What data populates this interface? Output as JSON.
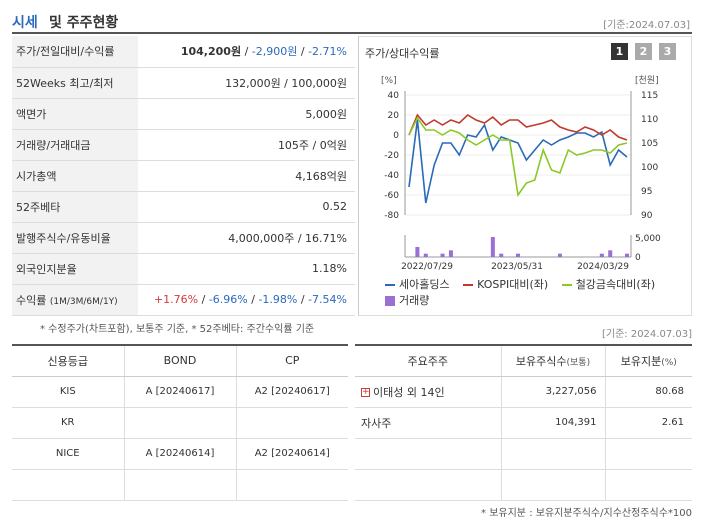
{
  "header": {
    "title_a": "시세",
    "title_b": "및 주주현황",
    "date": "[기준:2024.07.03]"
  },
  "quote": {
    "price_label": "주가/전일대비/수익률",
    "price": "104,200원",
    "change": "-2,900원",
    "change_rate": "-2.71%",
    "wk52_label": "52Weeks 최고/최저",
    "wk52_value": "132,000원 / 100,000원",
    "face_label": "액면가",
    "face_value": "5,000원",
    "volume_label": "거래량/거래대금",
    "volume_value": "105주 / 0억원",
    "mcap_label": "시가총액",
    "mcap_value": "4,168억원",
    "beta_label": "52주베타",
    "beta_value": "0.52",
    "shares_label": "발행주식수/유동비율",
    "shares_value": "4,000,000주 / 16.71%",
    "foreign_label": "외국인지분율",
    "foreign_value": "1.18%",
    "ret_label": "수익률",
    "ret_sub": "(1M/3M/6M/1Y)",
    "ret_1m": "+1.76%",
    "ret_3m": "-6.96%",
    "ret_6m": "-1.98%",
    "ret_1y": "-7.54%",
    "note": "* 수정주가(차트포함), 보통주 기준, * 52주베타: 주간수익률 기준"
  },
  "chart_title": "주가/상대수익률",
  "chart_pages": [
    "1",
    "2",
    "3"
  ],
  "chart_data": {
    "type": "line",
    "left_axis": {
      "ticks": [
        40,
        20,
        0,
        -20,
        -40,
        -60,
        -80
      ],
      "range": [
        -80,
        40
      ],
      "unit": "[%]"
    },
    "right_axis": {
      "ticks": [
        115,
        110,
        105,
        100,
        95,
        90
      ],
      "range": [
        90,
        115
      ],
      "unit": "[천원]"
    },
    "x_labels": [
      "2022/07/29",
      "2023/05/31",
      "2024/03/29"
    ],
    "series": [
      {
        "name": "세아홀딩스",
        "color": "#2a6ab8",
        "axis": "left",
        "values": [
          -52,
          15,
          -68,
          -30,
          -8,
          -8,
          -20,
          0,
          -2,
          10,
          -15,
          -2,
          -5,
          -8,
          -25,
          -15,
          -5,
          -10,
          -5,
          -2,
          2,
          2,
          -2,
          3,
          -30,
          -15,
          -22
        ]
      },
      {
        "name": "KOSPI대비(좌)",
        "color": "#c0392b",
        "axis": "left",
        "values": [
          0,
          20,
          10,
          15,
          10,
          15,
          12,
          20,
          15,
          12,
          18,
          10,
          15,
          15,
          8,
          10,
          12,
          15,
          8,
          5,
          3,
          8,
          5,
          0,
          5,
          -2,
          -5
        ]
      },
      {
        "name": "철강금속대비(좌)",
        "color": "#8ac926",
        "axis": "left",
        "values": [
          0,
          17,
          5,
          5,
          0,
          5,
          2,
          -5,
          -10,
          -5,
          0,
          -5,
          -5,
          -60,
          -48,
          -45,
          -15,
          -35,
          -38,
          -15,
          -20,
          -18,
          -15,
          -15,
          -18,
          -10,
          -8
        ]
      },
      {
        "name": "거래량",
        "color": "#9b6fd4",
        "type": "bar",
        "values": [
          0,
          3,
          1,
          0,
          1,
          2,
          0,
          0,
          0,
          0,
          6,
          1,
          0,
          1,
          0,
          0,
          0,
          0,
          1,
          0,
          0,
          0,
          0,
          1,
          2,
          0,
          1
        ]
      }
    ]
  },
  "credit": {
    "headers": [
      "신용등급",
      "BOND",
      "CP"
    ],
    "rows": [
      [
        "KIS",
        "A [20240617]",
        "A2 [20240617]"
      ],
      [
        "KR",
        "",
        ""
      ],
      [
        "NICE",
        "A [20240614]",
        "A2 [20240614]"
      ],
      [
        "",
        "",
        ""
      ]
    ]
  },
  "holders": {
    "date": "[기준: 2024.07.03]",
    "headers": [
      "주요주주",
      "보유주식수",
      "(보통)",
      "보유지분",
      "(%)"
    ],
    "rows": [
      {
        "name": "이태성 외 14인",
        "shares": "3,227,056",
        "pct": "80.68",
        "expand": "+"
      },
      {
        "name": "자사주",
        "shares": "104,391",
        "pct": "2.61",
        "expand": ""
      },
      {
        "name": "",
        "shares": "",
        "pct": "",
        "expand": ""
      },
      {
        "name": "",
        "shares": "",
        "pct": "",
        "expand": ""
      }
    ],
    "note": "* 보유지분 : 보유지분주식수/지수산정주식수*100"
  }
}
